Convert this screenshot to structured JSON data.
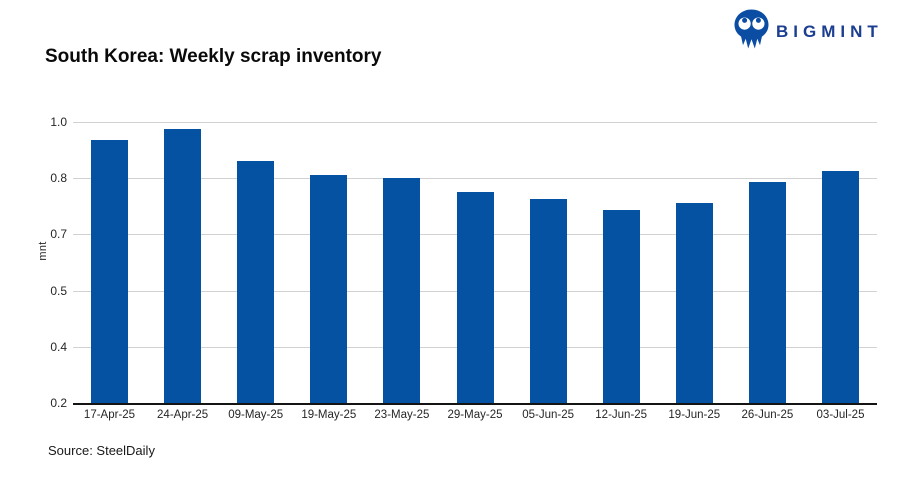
{
  "header": {
    "title": "South Korea: Weekly scrap inventory",
    "brand": {
      "name": "BIGMINT",
      "icon": "owl-icon"
    }
  },
  "chart_data": {
    "type": "bar",
    "title": "South Korea: Weekly scrap inventory",
    "categories": [
      "17-Apr-25",
      "24-Apr-25",
      "09-May-25",
      "19-May-25",
      "23-May-25",
      "29-May-25",
      "05-Jun-25",
      "12-Jun-25",
      "19-Jun-25",
      "26-Jun-25",
      "03-Jul-25"
    ],
    "values": [
      0.95,
      0.98,
      0.89,
      0.85,
      0.84,
      0.8,
      0.78,
      0.75,
      0.77,
      0.83,
      0.86
    ],
    "xlabel": "",
    "ylabel": "mnt",
    "ylim": [
      0.2,
      1.0
    ],
    "ytick_values": [
      1.0,
      0.84,
      0.68,
      0.52,
      0.36,
      0.2
    ],
    "ytick_labels": [
      "1.0",
      "0.8",
      "0.7",
      "0.5",
      "0.4",
      "0.2"
    ],
    "grid": true,
    "legend": false,
    "bar_color": "#0552a3"
  },
  "colors": {
    "bar": "#0552a3",
    "brand_text": "#1b3e91",
    "brand_icon": "#0b4da2",
    "gridline": "#d2d2d2",
    "axis_line": "#141414",
    "tick_text": "#262626"
  },
  "footer": {
    "source": "Source: SteelDaily"
  }
}
